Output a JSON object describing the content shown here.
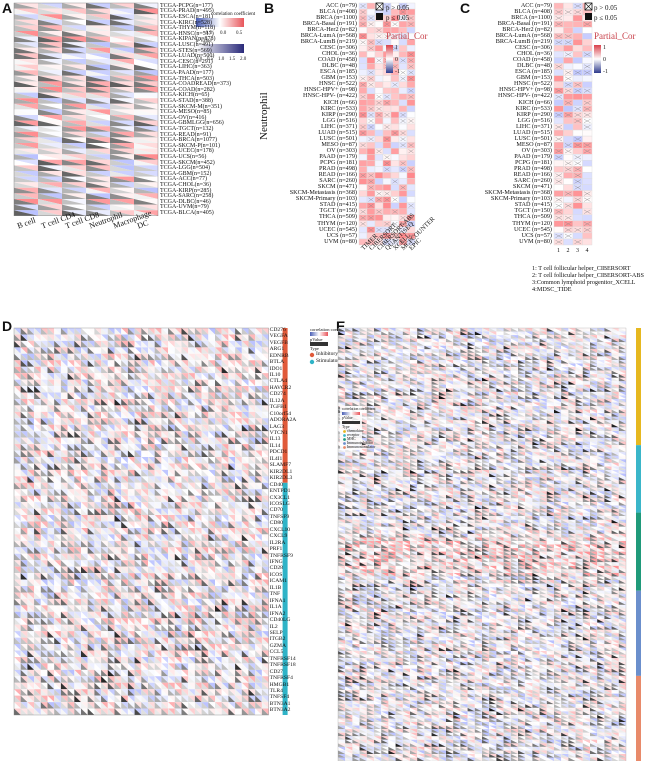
{
  "panels": {
    "A": {
      "label": "A",
      "rows": [
        "TCGA-PCPG(n=177)",
        "TCGA-PRAD(n=495)",
        "TCGA-ESCA(n=181)",
        "TCGA-KIRC(n=528)",
        "TCGA-THYM(n=118)",
        "TCGA-HNSC(n=517)",
        "TCGA-KIPAN(n=878)",
        "TCGA-LUSC(n=491)",
        "TCGA-STES(n=569)",
        "TCGA-LUAD(n=500)",
        "TCGA-CESC(n=291)",
        "TCGA-LIHC(n=363)",
        "TCGA-PAAD(n=177)",
        "TCGA-THCA(n=503)",
        "TCGA-COADREAD(n=373)",
        "TCGA-COAD(n=282)",
        "TCGA-KICH(n=65)",
        "TCGA-STAD(n=388)",
        "TCGA-SKCM-M(n=351)",
        "TCGA-MESO(n=85)",
        "TCGA-OV(n=416)",
        "TCGA-GBMLGG(n=656)",
        "TCGA-TGCT(n=132)",
        "TCGA-READ(n=91)",
        "TCGA-BRCA(n=1077)",
        "TCGA-SKCM-P(n=101)",
        "TCGA-UCEC(n=178)",
        "TCGA-UCS(n=56)",
        "TCGA-SKCM(n=452)",
        "TCGA-LGG(n=504)",
        "TCGA-GBM(n=152)",
        "TCGA-ACC(n=77)",
        "TCGA-CHOL(n=36)",
        "TCGA-KIRP(n=285)",
        "TCGA-SARC(n=258)",
        "TCGA-DLBC(n=46)",
        "TCGA-UVM(n=79)",
        "TCGA-BLCA(n=405)"
      ],
      "cols": [
        "B cell",
        "T cell CD4",
        "T cell CD8",
        "Neutrophil",
        "Macrophage",
        "DC"
      ],
      "legend_corr_title": "correlation coefficient",
      "legend_corr_ticks": [
        "-0.5",
        "0.0",
        "0.5"
      ],
      "legend_p_title": "p-Value",
      "legend_p_ticks": [
        "0.0",
        "0.5",
        "1.0",
        "1.5",
        "2.0"
      ]
    },
    "B": {
      "label": "B",
      "rows": [
        "ACC (n=79)",
        "BLCA (n=408)",
        "BRCA (n=1100)",
        "BRCA-Basal (n=191)",
        "BRCA-Her2 (n=82)",
        "BRCA-LumA (n=568)",
        "BRCA-LumB (n=219)",
        "CESC (n=306)",
        "CHOL (n=36)",
        "COAD (n=458)",
        "DLBC (n=48)",
        "ESCA (n=185)",
        "GBM (n=153)",
        "HNSC (n=522)",
        "HNSC-HPV+ (n=98)",
        "HNSC-HPV- (n=422)",
        "KICH (n=66)",
        "KIRC (n=533)",
        "KIRP (n=290)",
        "LGG (n=516)",
        "LIHC (n=371)",
        "LUAD (n=515)",
        "LUSC (n=501)",
        "MESO (n=87)",
        "OV (n=303)",
        "PAAD (n=179)",
        "PCPG (n=181)",
        "PRAD (n=498)",
        "READ (n=166)",
        "SARC (n=260)",
        "SKCM (n=471)",
        "SKCM-Metastasis (n=368)",
        "SKCM-Primary (n=103)",
        "STAD (n=415)",
        "TGCT (n=150)",
        "THCA (n=509)",
        "THYM (n=120)",
        "UCEC (n=545)",
        "UCS (n=57)",
        "UVM (n=80)"
      ],
      "side_title": "Neutrophil",
      "cols": [
        "TIMER",
        "CIBERSORT",
        "CIBERSORT-ABS",
        "QUANTISEQ",
        "XCELL",
        "MCPCOUNTER",
        "EPIC"
      ],
      "legend_ns": "p > 0.05",
      "legend_sig": "p ≤ 0.05",
      "legend_title": "Partial_Cor",
      "legend_ticks": [
        "1",
        "0",
        "-1"
      ]
    },
    "C": {
      "label": "C",
      "rows": [
        "ACC (n=79)",
        "BLCA (n=408)",
        "BRCA (n=1100)",
        "BRCA-Basal (n=191)",
        "BRCA-Her2 (n=82)",
        "BRCA-LumA (n=568)",
        "BRCA-LumB (n=219)",
        "CESC (n=306)",
        "CHOL (n=36)",
        "COAD (n=458)",
        "DLBC (n=48)",
        "ESCA (n=185)",
        "GBM (n=153)",
        "HNSC (n=522)",
        "HNSC-HPV+ (n=98)",
        "HNSC-HPV- (n=422)",
        "KICH (n=66)",
        "KIRC (n=533)",
        "KIRP (n=290)",
        "LGG (n=516)",
        "LIHC (n=371)",
        "LUAD (n=515)",
        "LUSC (n=501)",
        "MESO (n=87)",
        "OV (n=303)",
        "PAAD (n=179)",
        "PCPG (n=181)",
        "PRAD (n=498)",
        "READ (n=166)",
        "SARC (n=260)",
        "SKCM (n=471)",
        "SKCM-Metastasis (n=368)",
        "SKCM-Primary (n=103)",
        "STAD (n=415)",
        "TGCT (n=150)",
        "THCA (n=509)",
        "THYM (n=120)",
        "UCEC (n=545)",
        "UCS (n=57)",
        "UVM (n=80)"
      ],
      "cols": [
        "1",
        "2",
        "3",
        "4"
      ],
      "legend_ns": "p > 0.05",
      "legend_sig": "p ≤ 0.05",
      "legend_title": "Partial_Cor",
      "legend_ticks": [
        "1",
        "0",
        "-1"
      ],
      "footnotes": [
        "1: T cell follicular helper_CIBERSORT",
        "2: T cell follicular helper_CIBERSORT-ABS",
        "3:Common lymphoid progenitor_XCELL",
        "4:MDSC_TIDE"
      ]
    },
    "D": {
      "label": "D",
      "genes": [
        "CD276",
        "VEGFA",
        "VEGFB",
        "ARG1",
        "EDNRB",
        "BTLA",
        "IDO1",
        "IL10",
        "CTLA4",
        "HAVCR2",
        "CD274",
        "IL12A",
        "TGFB1",
        "C10orf54",
        "ADORA2A",
        "LAG3",
        "VTCN1",
        "IL13",
        "IL14",
        "PDCD1",
        "IL4I1",
        "SLAMF7",
        "KIR2DL1",
        "KIR2DL3",
        "CD40",
        "ENTPD1",
        "CX3CL1",
        "ICOSLG",
        "CD70",
        "TNFSF9",
        "CD80",
        "CXCL10",
        "CXCL9",
        "IL2RA",
        "PRF1",
        "TNFRSF9",
        "IFNG",
        "CD28",
        "ICOS",
        "ICAM1",
        "IL1B",
        "TNF",
        "IFNA1",
        "IL1A",
        "IFNA2",
        "CD40LG",
        "IL2",
        "SELP",
        "ITGB2",
        "GZMA",
        "CCL5",
        "TNFRSF14",
        "TNFRSF18",
        "CD27",
        "TNFRSF4",
        "HMGB1",
        "TLR4",
        "TNFSF4",
        "BTN3A1",
        "BTN3A2"
      ],
      "legend_corr_title": "correlation coefficient",
      "legend_corr_ticks": [
        "-1.0",
        "-0.5",
        "0.0",
        "0.5",
        "1.0"
      ],
      "legend_p_title": "pValue",
      "type_title": "Type",
      "types": [
        "Inhibitory",
        "Stimulatory"
      ]
    },
    "E": {
      "label": "E",
      "legend_corr_title": "correlation coefficient",
      "legend_p_title": "pValue",
      "type_title": "Type",
      "types": [
        "chemokine",
        "receptor",
        "MHC",
        "Immunoinhibitor",
        "Immunostimulator"
      ]
    }
  },
  "colors": {
    "pos": "#e8555a",
    "neg": "#4a5fb5",
    "inhibitory": "#e05a3a",
    "stimulatory": "#2fb3c7",
    "chemokine": "#e6b820",
    "receptor": "#3ab6c9",
    "mhc": "#1f9a7a",
    "immunoinhibitor": "#6b8fcc",
    "immunostimulator": "#e88a6a"
  }
}
